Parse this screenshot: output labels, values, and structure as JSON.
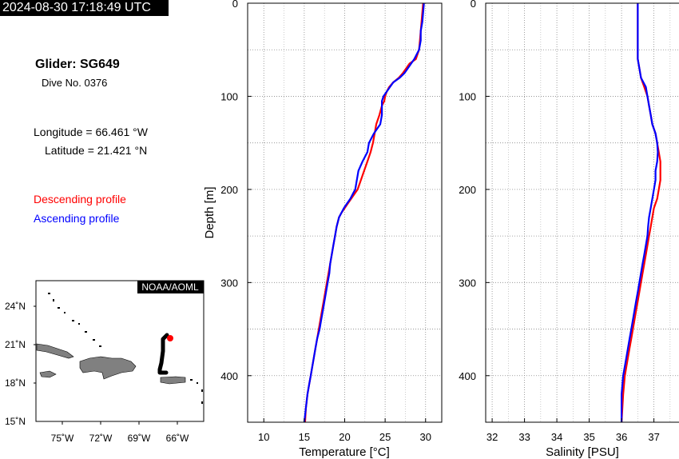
{
  "header": {
    "timestamp": "2024-08-30 17:18:49 UTC"
  },
  "info": {
    "glider": "Glider: SG649",
    "dive": "Dive No. 0376",
    "longitude": "Longitude = 66.461 °W",
    "latitude": "Latitude = 21.421 °N",
    "descending_label": "Descending profile",
    "ascending_label": "Ascending profile",
    "descending_color": "#ff0000",
    "ascending_color": "#0000ff"
  },
  "map": {
    "credit": "NOAA/AOML",
    "lat_ticks": [
      "15˚N",
      "18˚N",
      "21˚N",
      "24˚N"
    ],
    "lon_ticks": [
      "75˚W",
      "72˚W",
      "69˚W",
      "66˚W"
    ],
    "land_color": "#808080",
    "track_color": "#000000",
    "position_color": "#ff0000"
  },
  "chart_data": [
    {
      "type": "line",
      "xlabel": "Temperature [°C]",
      "ylabel": "Depth [m]",
      "xlim": [
        8,
        32
      ],
      "ylim": [
        450,
        0
      ],
      "xticks": [
        "10",
        "15",
        "20",
        "25",
        "30"
      ],
      "yticks": [
        "0",
        "100",
        "200",
        "300",
        "400"
      ],
      "grid": true,
      "series": [
        {
          "name": "Descending profile",
          "color": "#ff0000",
          "x": [
            29.7,
            29.6,
            29.5,
            29.4,
            29.3,
            29.2,
            28.8,
            28.0,
            27.6,
            27.2,
            26.7,
            26.0,
            25.5,
            25.2,
            25.0,
            24.9,
            24.6,
            24.3,
            23.9,
            23.7,
            23.5,
            23.2,
            22.8,
            22.4,
            22.0,
            21.6,
            21.2,
            20.8,
            20.4,
            20.0,
            19.6,
            19.3,
            19.0,
            18.8,
            18.6,
            18.4,
            18.2,
            18.0,
            17.8,
            17.6,
            17.4,
            17.2,
            17.0,
            16.8,
            16.6,
            16.4,
            16.2,
            16.0,
            15.8,
            15.6,
            15.4,
            15.2,
            15.1
          ],
          "y": [
            0,
            10,
            20,
            30,
            40,
            50,
            60,
            65,
            70,
            75,
            80,
            85,
            90,
            95,
            100,
            105,
            110,
            120,
            130,
            140,
            150,
            160,
            170,
            180,
            190,
            200,
            205,
            210,
            215,
            220,
            225,
            230,
            240,
            250,
            260,
            270,
            280,
            290,
            300,
            310,
            320,
            330,
            340,
            350,
            360,
            370,
            380,
            390,
            400,
            410,
            420,
            435,
            450
          ]
        },
        {
          "name": "Ascending profile",
          "color": "#0000ff",
          "x": [
            29.8,
            29.7,
            29.6,
            29.4,
            29.4,
            29.2,
            28.6,
            28.2,
            27.8,
            27.4,
            26.8,
            26.0,
            25.6,
            25.2,
            24.8,
            24.6,
            24.6,
            24.6,
            24.4,
            23.6,
            23.0,
            22.8,
            22.2,
            21.7,
            21.5,
            21.3,
            21.0,
            20.7,
            20.3,
            19.9,
            19.6,
            19.3,
            19.0,
            18.8,
            18.6,
            18.4,
            18.2,
            18.1,
            17.9,
            17.7,
            17.5,
            17.3,
            17.1,
            16.9,
            16.6,
            16.4,
            16.2,
            16.0,
            15.8,
            15.6,
            15.4,
            15.2,
            15.0
          ],
          "y": [
            0,
            10,
            20,
            30,
            40,
            50,
            60,
            65,
            70,
            75,
            80,
            85,
            90,
            95,
            100,
            105,
            110,
            120,
            130,
            140,
            150,
            160,
            170,
            180,
            190,
            200,
            205,
            210,
            215,
            220,
            225,
            230,
            240,
            250,
            260,
            270,
            280,
            290,
            300,
            310,
            320,
            330,
            340,
            350,
            360,
            370,
            380,
            390,
            400,
            410,
            420,
            435,
            450
          ]
        }
      ]
    },
    {
      "type": "line",
      "xlabel": "Salinity [PSU]",
      "ylabel": "",
      "xlim": [
        31.8,
        37.8
      ],
      "ylim": [
        450,
        0
      ],
      "xticks": [
        "32",
        "33",
        "34",
        "35",
        "36",
        "37"
      ],
      "yticks": [
        "0",
        "100",
        "200",
        "300",
        "400"
      ],
      "grid": true,
      "series": [
        {
          "name": "Descending profile",
          "color": "#ff0000",
          "x": [
            36.5,
            36.5,
            36.5,
            36.5,
            36.5,
            36.55,
            36.6,
            36.7,
            36.8,
            36.85,
            36.9,
            36.95,
            37.05,
            37.1,
            37.15,
            37.2,
            37.2,
            37.2,
            37.15,
            37.1,
            37.0,
            36.95,
            36.9,
            36.85,
            36.8,
            36.75,
            36.7,
            36.65,
            36.6,
            36.55,
            36.5,
            36.45,
            36.4,
            36.35,
            36.3,
            36.25,
            36.2,
            36.15,
            36.1,
            36.05,
            36.0
          ],
          "y": [
            0,
            20,
            40,
            55,
            60,
            70,
            80,
            90,
            100,
            110,
            120,
            130,
            140,
            150,
            160,
            170,
            180,
            190,
            200,
            210,
            220,
            230,
            240,
            250,
            260,
            270,
            280,
            290,
            300,
            310,
            320,
            330,
            340,
            350,
            360,
            370,
            380,
            390,
            400,
            420,
            450
          ]
        },
        {
          "name": "Ascending profile",
          "color": "#0000ff",
          "x": [
            36.5,
            36.5,
            36.5,
            36.5,
            36.5,
            36.55,
            36.6,
            36.75,
            36.8,
            36.85,
            36.9,
            36.95,
            37.05,
            37.1,
            37.12,
            37.1,
            37.05,
            37.05,
            37.0,
            36.95,
            36.9,
            36.85,
            36.82,
            36.8,
            36.75,
            36.7,
            36.65,
            36.6,
            36.55,
            36.5,
            36.45,
            36.4,
            36.35,
            36.3,
            36.25,
            36.2,
            36.15,
            36.1,
            36.05,
            36.0,
            36.0
          ],
          "y": [
            0,
            20,
            40,
            55,
            60,
            70,
            80,
            90,
            100,
            110,
            120,
            130,
            140,
            150,
            160,
            170,
            180,
            190,
            200,
            210,
            220,
            230,
            240,
            250,
            260,
            270,
            280,
            290,
            300,
            310,
            320,
            330,
            340,
            350,
            360,
            370,
            380,
            390,
            400,
            420,
            450
          ]
        }
      ]
    }
  ]
}
